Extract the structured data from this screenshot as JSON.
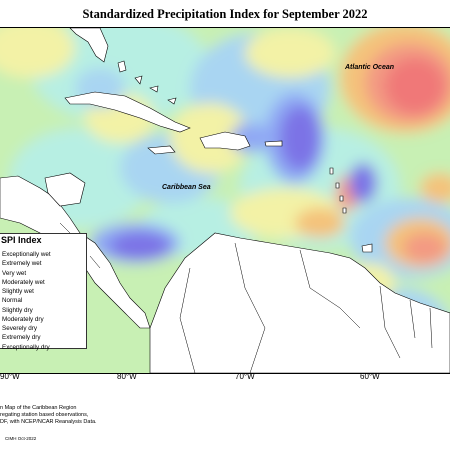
{
  "title": "Standardized Precipitation Index for September 2022",
  "map": {
    "labels": {
      "atlantic": "Atlantic Ocean",
      "caribbean": "Caribbean Sea"
    },
    "longitude_ticks": [
      "90°W",
      "80°W",
      "70°W",
      "60°W"
    ],
    "colors": {
      "extremely_wet": "#7b73e6",
      "very_wet": "#8fa8f4",
      "moderately_wet": "#a9d5f2",
      "slightly_wet": "#b7efe3",
      "normal": "#c8f0b4",
      "slightly_dry": "#f3f2a6",
      "moderately_dry": "#f4c27a",
      "severely_dry": "#f39a83",
      "extremely_dry": "#f07878",
      "land": "#ffffff"
    }
  },
  "legend": {
    "title": "SPI Index",
    "items": [
      "Exceptionally wet",
      "Extremely wet",
      "Very wet",
      "Moderately wet",
      "Slightly wet",
      "Normal",
      "Slightly dry",
      "Moderately dry",
      "Severely dry",
      "Extremely dry",
      "Exceptionally dry"
    ]
  },
  "footnote": {
    "line1": "n Map of the Caribbean Region",
    "line2": "regating station based observations,",
    "line3": "DF, with NCEP/NCAR Reanalysis Data."
  },
  "credit": "CIMH Oct-2022"
}
